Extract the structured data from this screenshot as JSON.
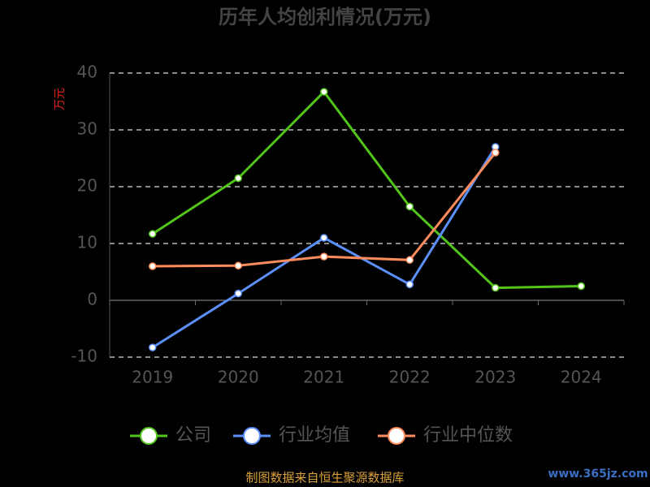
{
  "chart_data": {
    "type": "line",
    "title": "历年人均创利情况(万元)",
    "y_label": "万元",
    "categories": [
      "2019",
      "2020",
      "2021",
      "2022",
      "2023",
      "2024"
    ],
    "series": [
      {
        "name": "公司",
        "color": "#52c41a",
        "values": [
          11.7,
          21.5,
          36.7,
          16.5,
          2.2,
          2.5
        ]
      },
      {
        "name": "行业均值",
        "color": "#5b8ff9",
        "values": [
          -8.3,
          1.2,
          11.0,
          2.8,
          27.0,
          null
        ]
      },
      {
        "name": "行业中位数",
        "color": "#ff8c5a",
        "values": [
          6.0,
          6.1,
          7.7,
          7.1,
          26.0,
          null
        ]
      }
    ],
    "ylim": [
      -10,
      40
    ],
    "yticks": [
      -10,
      0,
      10,
      20,
      30,
      40
    ],
    "grid": true,
    "source": "制图数据来自恒生聚源数据库",
    "watermark": "www.365jz.com"
  }
}
